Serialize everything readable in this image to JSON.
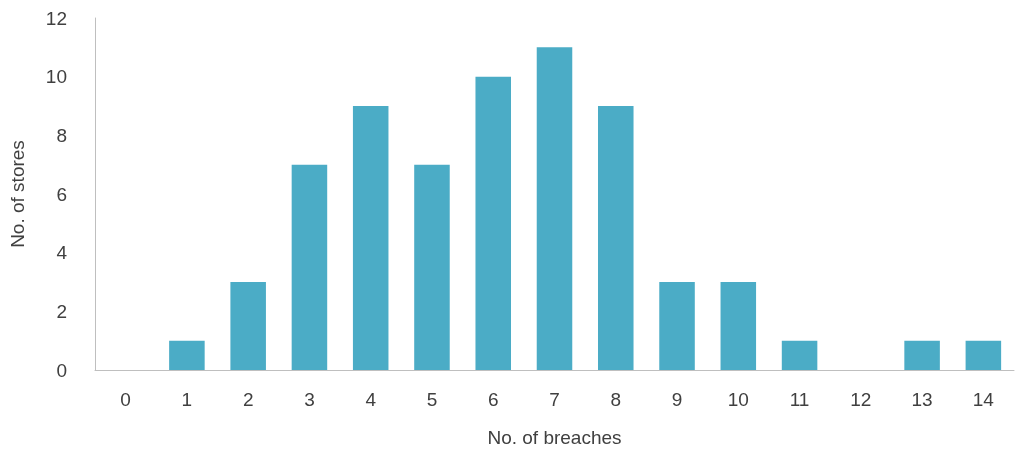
{
  "chart_data": {
    "type": "bar",
    "xlabel": "No. of breaches",
    "ylabel": "No. of stores",
    "categories": [
      "0",
      "1",
      "2",
      "3",
      "4",
      "5",
      "6",
      "7",
      "8",
      "9",
      "10",
      "11",
      "12",
      "13",
      "14"
    ],
    "values": [
      0,
      1,
      3,
      7,
      9,
      7,
      10,
      11,
      9,
      3,
      3,
      1,
      0,
      1,
      1
    ],
    "color": "#4bacc6",
    "ylim": [
      0,
      12
    ],
    "yticks": [
      0,
      2,
      4,
      6,
      8,
      10,
      12
    ],
    "grid": false
  }
}
